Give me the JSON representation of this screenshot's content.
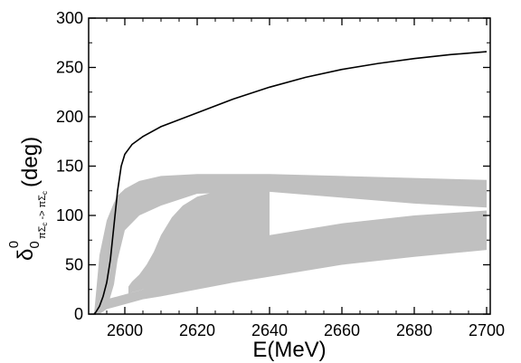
{
  "chart_data": {
    "type": "area",
    "xlabel": "E(MeV)",
    "ylabel_parts": {
      "symbol": "δ",
      "subscript": "0",
      "superscript": "0",
      "channel": "πΣ",
      "channel_sub": "c",
      "arrow": "->",
      "channel2": "πΣ",
      "channel2_sub": "c",
      "unit": "(deg)"
    },
    "xlim": [
      2590,
      2701
    ],
    "ylim": [
      0,
      300
    ],
    "xticks": [
      2600,
      2620,
      2640,
      2660,
      2680,
      2700
    ],
    "yticks": [
      0,
      50,
      100,
      150,
      200,
      250,
      300
    ],
    "grid": false,
    "band_color": "#c0c0c0",
    "line_color": "#000000",
    "series": [
      {
        "type": "line",
        "x": [
          2591.5,
          2592,
          2593,
          2594,
          2595,
          2596,
          2597,
          2598,
          2599,
          2600,
          2602,
          2605,
          2610,
          2620,
          2630,
          2640,
          2650,
          2660,
          2670,
          2680,
          2690,
          2700
        ],
        "y": [
          0,
          2,
          8,
          18,
          32,
          55,
          90,
          125,
          150,
          162,
          172,
          180,
          190,
          204,
          218,
          230,
          240,
          248,
          254,
          259,
          263,
          266
        ]
      },
      {
        "type": "band",
        "x": [
          2591.5,
          2593,
          2595,
          2597,
          2598,
          2600,
          2604,
          2610,
          2620,
          2640,
          2660,
          2680,
          2700
        ],
        "upper": [
          0,
          60,
          95,
          113,
          120,
          127,
          135,
          140,
          142,
          142,
          140,
          138,
          136
        ],
        "lower": [
          0,
          0,
          5,
          30,
          55,
          85,
          100,
          110,
          122,
          124,
          118,
          112,
          108
        ]
      },
      {
        "type": "band",
        "x": [
          2591.5,
          2595,
          2600,
          2605,
          2610,
          2620,
          2630,
          2640,
          2660,
          2680,
          2700
        ],
        "upper": [
          0,
          15,
          20,
          25,
          35,
          52,
          68,
          80,
          92,
          100,
          105
        ],
        "lower": [
          0,
          5,
          10,
          15,
          18,
          25,
          32,
          38,
          50,
          58,
          65
        ]
      },
      {
        "type": "band",
        "x": [
          2601,
          2602,
          2604,
          2606,
          2608,
          2610,
          2613,
          2616,
          2620,
          2625,
          2630,
          2635,
          2640
        ],
        "upper": [
          28,
          33,
          40,
          50,
          63,
          80,
          98,
          110,
          119,
          124,
          126,
          126,
          125
        ],
        "lower": [
          20,
          22,
          24,
          26,
          28,
          30,
          34,
          38,
          43,
          50,
          57,
          63,
          69
        ]
      }
    ]
  }
}
